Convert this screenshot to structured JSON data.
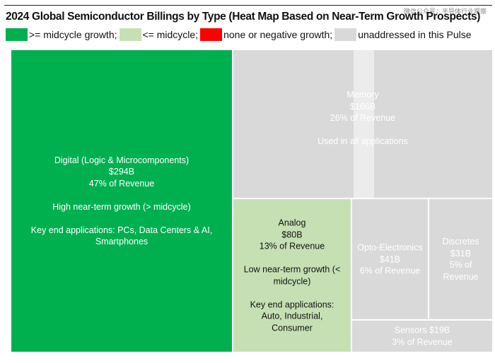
{
  "watermark": "微信公众号：半导体行业观察",
  "chart_data": {
    "type": "treemap",
    "title": "2024 Global Semiconductor Billings by Type (Heat Map Based on Near-Term Growth Prospects)",
    "legend": [
      {
        "label": ">= midcycle growth;",
        "color": "#00b04f"
      },
      {
        "label": "<= midcycle;",
        "color": "#c6e0b4"
      },
      {
        "label": "none or negative growth;",
        "color": "#ff0000"
      },
      {
        "label": "unaddressed in this Pulse",
        "color": "#d9d9d9"
      }
    ],
    "units": "$B",
    "segments": [
      {
        "name": "Digital (Logic & Microcomponents)",
        "value": 294,
        "value_label": "$294B",
        "share_label": "47% of Revenue",
        "growth": "High near-term growth (> midcycle)",
        "applications": "Key end applications: PCs, Data Centers & AI, Smartphones",
        "category": ">= midcycle growth",
        "color": "#00b04f"
      },
      {
        "name": "Memory",
        "value": 166,
        "value_label": "$166B",
        "share_label": "26% of Revenue",
        "note": "Used in all applications",
        "category": "unaddressed in this Pulse",
        "color": "#d9d9d9"
      },
      {
        "name": "Analog",
        "value": 80,
        "value_label": "$80B",
        "share_label": "13% of Revenue",
        "growth": "Low near-term growth (< midcycle)",
        "applications": "Key end applications: Auto, Industrial, Consumer",
        "category": "<= midcycle",
        "color": "#c6e0b4"
      },
      {
        "name": "Opto-Electronics",
        "value": 41,
        "value_label": "$41B",
        "share_label": "6% of Revenue",
        "category": "unaddressed in this Pulse",
        "color": "#d9d9d9"
      },
      {
        "name": "Discretes",
        "value": 31,
        "value_label": "$31B",
        "share_label": "5% of Revenue",
        "category": "unaddressed in this Pulse",
        "color": "#d9d9d9"
      },
      {
        "name": "Sensors",
        "value": 19,
        "value_label": "Sensors $19B",
        "share_label": "3% of Revenue",
        "category": "unaddressed in this Pulse",
        "color": "#d9d9d9"
      }
    ]
  }
}
